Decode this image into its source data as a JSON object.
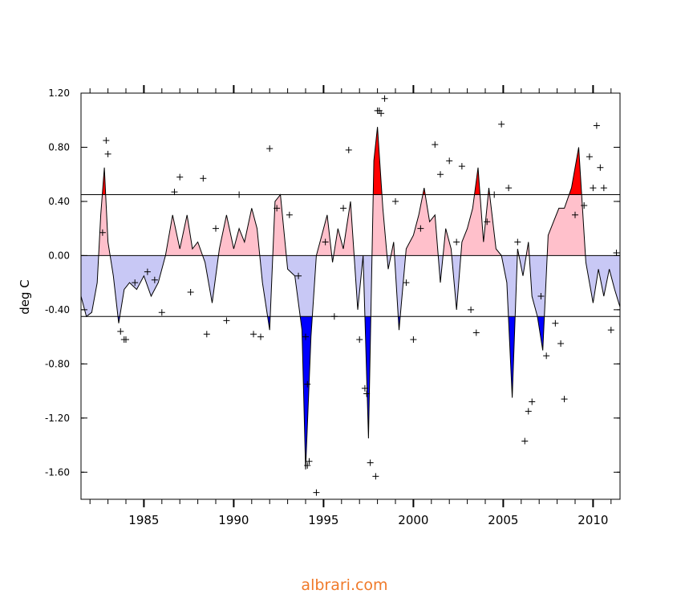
{
  "watermark": "albrari.com",
  "chart_data": {
    "type": "area",
    "title": "",
    "xlabel": "",
    "ylabel": "deg C",
    "xlim": [
      1981.5,
      2011.5
    ],
    "ylim": [
      -1.8,
      1.2
    ],
    "y_ticks": [
      -1.6,
      -1.2,
      -0.8,
      -0.4,
      0.0,
      0.4,
      0.8,
      1.2
    ],
    "y_tick_labels": [
      "-1.60",
      "-1.20",
      "-0.80",
      "-0.40",
      "0.00",
      "0.40",
      "0.80",
      "1.20"
    ],
    "x_ticks": [
      1985,
      1990,
      1995,
      2000,
      2005,
      2010
    ],
    "x_tick_labels": [
      "1985",
      "1990",
      "1995",
      "2000",
      "2005",
      "2010"
    ],
    "thresholds": [
      0.45,
      -0.45
    ],
    "grid": false,
    "colors": {
      "positive_fill": "#ffc0cb",
      "positive_strong": "#ff0000",
      "negative_fill": "#c8c8f5",
      "negative_strong": "#0000ff",
      "line": "#000000"
    },
    "series": [
      {
        "kind": "smoothed_line",
        "x": [
          1981.5,
          1981.8,
          1982.1,
          1982.4,
          1982.6,
          1982.8,
          1983.0,
          1983.3,
          1983.6,
          1983.9,
          1984.2,
          1984.6,
          1985.0,
          1985.4,
          1985.8,
          1986.2,
          1986.6,
          1987.0,
          1987.4,
          1987.7,
          1988.0,
          1988.4,
          1988.8,
          1989.2,
          1989.6,
          1990.0,
          1990.3,
          1990.6,
          1991.0,
          1991.3,
          1991.6,
          1992.0,
          1992.3,
          1992.6,
          1993.0,
          1993.4,
          1993.8,
          1994.0,
          1994.3,
          1994.6,
          1994.9,
          1995.2,
          1995.5,
          1995.8,
          1996.1,
          1996.5,
          1996.9,
          1997.2,
          1997.5,
          1997.8,
          1998.0,
          1998.3,
          1998.6,
          1998.9,
          1999.2,
          1999.6,
          2000.0,
          2000.3,
          2000.6,
          2000.9,
          2001.2,
          2001.5,
          2001.8,
          2002.1,
          2002.4,
          2002.7,
          2003.0,
          2003.3,
          2003.6,
          2003.9,
          2004.2,
          2004.6,
          2004.9,
          2005.2,
          2005.5,
          2005.8,
          2006.1,
          2006.4,
          2006.6,
          2006.9,
          2007.2,
          2007.5,
          2007.8,
          2008.1,
          2008.4,
          2008.8,
          2009.2,
          2009.6,
          2010.0,
          2010.3,
          2010.6,
          2010.9,
          2011.2,
          2011.5
        ],
        "y": [
          -0.3,
          -0.45,
          -0.42,
          -0.2,
          0.3,
          0.65,
          0.1,
          -0.15,
          -0.5,
          -0.25,
          -0.2,
          -0.25,
          -0.15,
          -0.3,
          -0.2,
          0.0,
          0.3,
          0.05,
          0.3,
          0.05,
          0.1,
          -0.05,
          -0.35,
          0.05,
          0.3,
          0.05,
          0.2,
          0.1,
          0.35,
          0.2,
          -0.2,
          -0.55,
          0.4,
          0.45,
          -0.1,
          -0.15,
          -0.55,
          -1.58,
          -0.6,
          0.0,
          0.15,
          0.3,
          -0.05,
          0.2,
          0.05,
          0.4,
          -0.4,
          0.0,
          -1.35,
          0.7,
          0.95,
          0.35,
          -0.1,
          0.1,
          -0.55,
          0.05,
          0.15,
          0.3,
          0.5,
          0.25,
          0.3,
          -0.2,
          0.2,
          0.05,
          -0.4,
          0.1,
          0.2,
          0.35,
          0.65,
          0.1,
          0.5,
          0.05,
          0.0,
          -0.2,
          -1.05,
          0.05,
          -0.15,
          0.1,
          -0.3,
          -0.45,
          -0.7,
          0.15,
          0.25,
          0.35,
          0.35,
          0.5,
          0.8,
          -0.05,
          -0.35,
          -0.1,
          -0.3,
          -0.1,
          -0.25,
          -0.38
        ]
      },
      {
        "kind": "monthly_points",
        "x": [
          1982.9,
          1983.0,
          1982.7,
          1983.7,
          1983.9,
          1984.0,
          1984.5,
          1985.2,
          1985.6,
          1986.0,
          1986.7,
          1987.0,
          1987.6,
          1988.3,
          1988.5,
          1989.0,
          1989.6,
          1990.3,
          1991.1,
          1991.5,
          1992.0,
          1992.4,
          1993.1,
          1993.6,
          1994.0,
          1994.1,
          1994.2,
          1994.1,
          1994.6,
          1995.1,
          1995.6,
          1996.1,
          1996.4,
          1997.0,
          1997.3,
          1997.4,
          1997.6,
          1997.9,
          1998.0,
          1998.1,
          1998.2,
          1998.4,
          1999.0,
          1999.6,
          2000.0,
          2000.4,
          2001.2,
          2001.5,
          2002.0,
          2002.4,
          2002.7,
          2003.2,
          2003.5,
          2004.1,
          2004.5,
          2004.9,
          2005.3,
          2005.8,
          2006.2,
          2006.4,
          2006.6,
          2007.1,
          2007.4,
          2007.9,
          2008.2,
          2008.4,
          2009.0,
          2009.5,
          2009.8,
          2010.0,
          2010.2,
          2010.4,
          2010.6,
          2011.0,
          2011.3
        ],
        "y": [
          0.85,
          0.75,
          0.17,
          -0.56,
          -0.62,
          -0.62,
          -0.2,
          -0.12,
          -0.18,
          -0.42,
          0.47,
          0.58,
          -0.27,
          0.57,
          -0.58,
          0.2,
          -0.48,
          0.45,
          -0.58,
          -0.6,
          0.79,
          0.35,
          0.3,
          -0.15,
          -0.6,
          -0.95,
          -1.52,
          -1.55,
          -1.75,
          0.1,
          -0.45,
          0.35,
          0.78,
          -0.62,
          -0.98,
          -1.02,
          -1.53,
          -1.63,
          1.07,
          1.07,
          1.05,
          1.16,
          0.4,
          -0.2,
          -0.62,
          0.2,
          0.82,
          0.6,
          0.7,
          0.1,
          0.66,
          -0.4,
          -0.57,
          0.25,
          0.45,
          0.97,
          0.5,
          0.1,
          -1.37,
          -1.15,
          -1.08,
          -0.3,
          -0.74,
          -0.5,
          -0.65,
          -1.06,
          0.3,
          0.37,
          0.73,
          0.5,
          0.96,
          0.65,
          0.5,
          -0.55,
          0.02
        ]
      }
    ]
  }
}
